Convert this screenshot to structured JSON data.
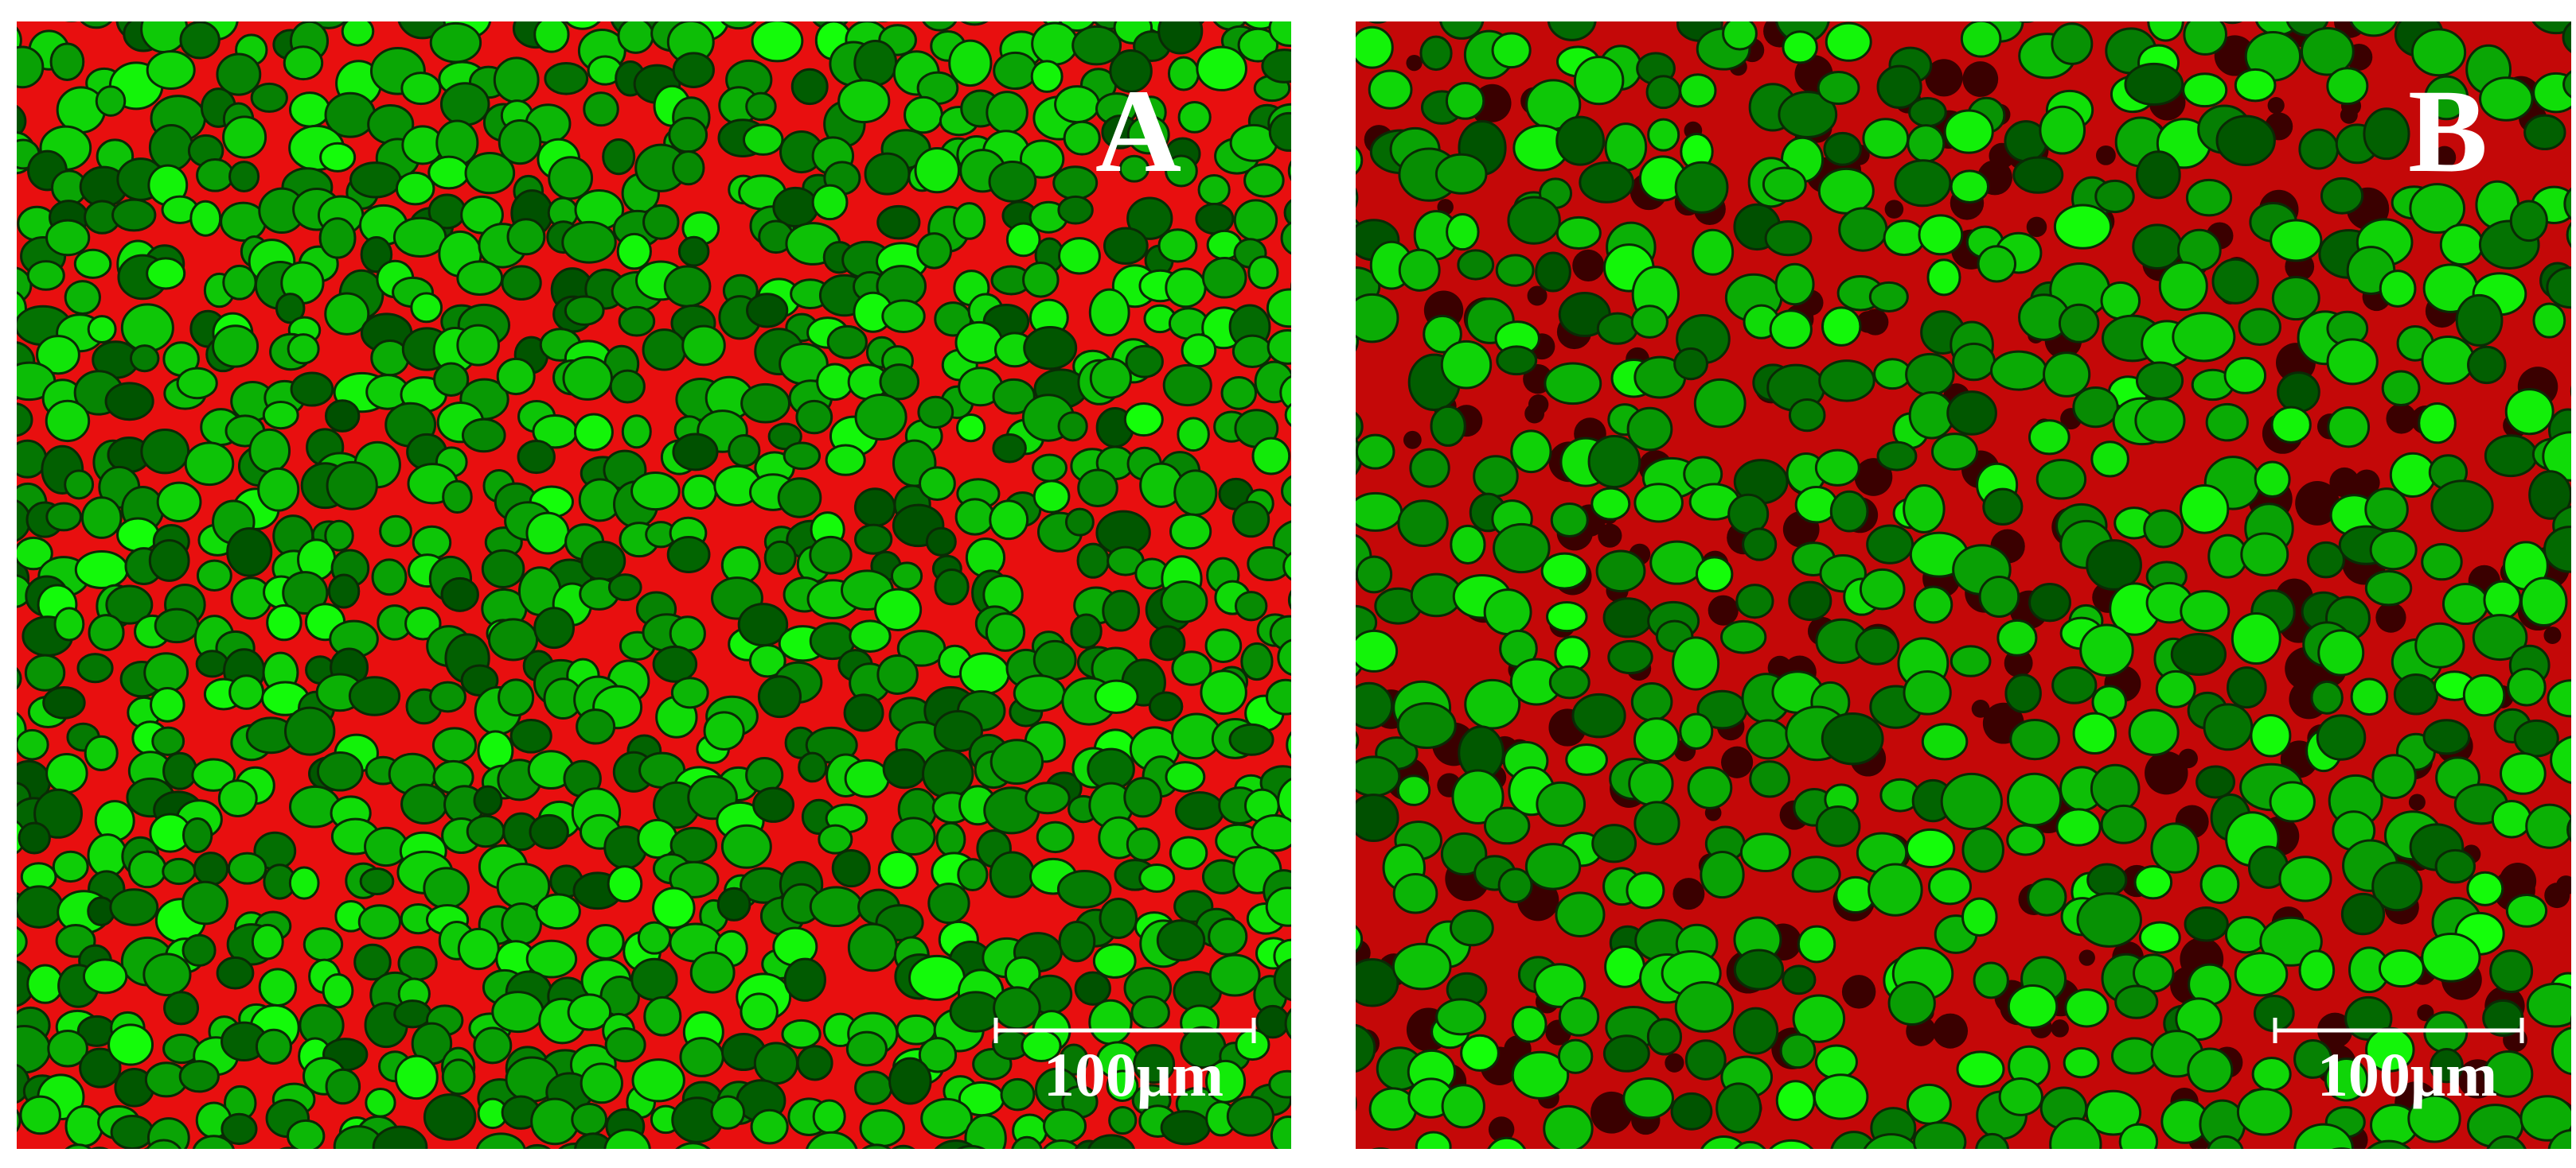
{
  "panels": [
    {
      "label": "A",
      "scale_bar": "100μm"
    },
    {
      "label": "B",
      "scale_bar": "100μm"
    }
  ]
}
